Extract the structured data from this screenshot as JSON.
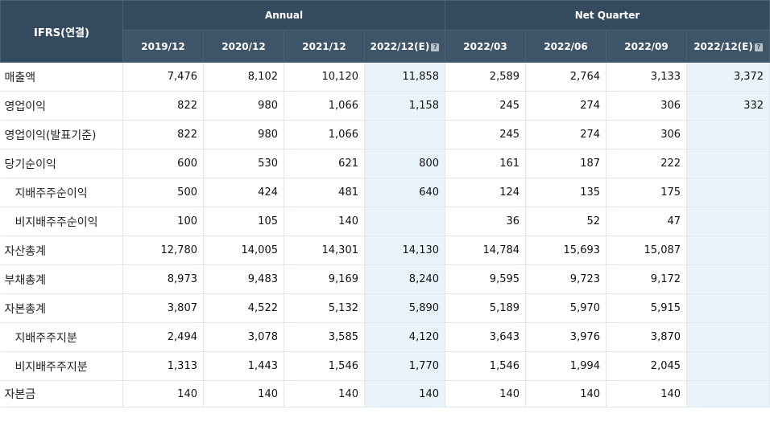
{
  "header": {
    "corner": "IFRS(연결)",
    "group_annual": "Annual",
    "group_quarter": "Net Quarter",
    "periods": [
      "2019/12",
      "2020/12",
      "2021/12",
      "2022/12(E)",
      "2022/03",
      "2022/06",
      "2022/09",
      "2022/12(E)"
    ],
    "estimate_icon": "question-icon"
  },
  "colors": {
    "header_bg": "#344a5e",
    "estimate_bg": "#e8f4fa"
  },
  "rows": [
    {
      "label": "매출액",
      "values": [
        "7,476",
        "8,102",
        "10,120",
        "11,858",
        "2,589",
        "2,764",
        "3,133",
        "3,372"
      ]
    },
    {
      "label": "영업이익",
      "values": [
        "822",
        "980",
        "1,066",
        "1,158",
        "245",
        "274",
        "306",
        "332"
      ]
    },
    {
      "label": "영업이익(발표기준)",
      "values": [
        "822",
        "980",
        "1,066",
        "",
        "245",
        "274",
        "306",
        ""
      ]
    },
    {
      "label": "당기순이익",
      "values": [
        "600",
        "530",
        "621",
        "800",
        "161",
        "187",
        "222",
        ""
      ]
    },
    {
      "label": "지배주주순이익",
      "values": [
        "500",
        "424",
        "481",
        "640",
        "124",
        "135",
        "175",
        ""
      ]
    },
    {
      "label": "비지배주주순이익",
      "values": [
        "100",
        "105",
        "140",
        "",
        "36",
        "52",
        "47",
        ""
      ]
    },
    {
      "label": "자산총계",
      "values": [
        "12,780",
        "14,005",
        "14,301",
        "14,130",
        "14,784",
        "15,693",
        "15,087",
        ""
      ]
    },
    {
      "label": "부채총계",
      "values": [
        "8,973",
        "9,483",
        "9,169",
        "8,240",
        "9,595",
        "9,723",
        "9,172",
        ""
      ]
    },
    {
      "label": "자본총계",
      "values": [
        "3,807",
        "4,522",
        "5,132",
        "5,890",
        "5,189",
        "5,970",
        "5,915",
        ""
      ]
    },
    {
      "label": "지배주주지분",
      "values": [
        "2,494",
        "3,078",
        "3,585",
        "4,120",
        "3,643",
        "3,976",
        "3,870",
        ""
      ]
    },
    {
      "label": "비지배주주지분",
      "values": [
        "1,313",
        "1,443",
        "1,546",
        "1,770",
        "1,546",
        "1,994",
        "2,045",
        ""
      ]
    },
    {
      "label": "자본금",
      "values": [
        "140",
        "140",
        "140",
        "140",
        "140",
        "140",
        "140",
        ""
      ]
    }
  ]
}
